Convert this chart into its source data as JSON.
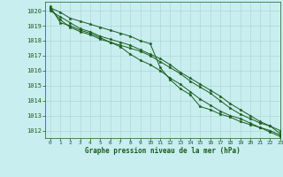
{
  "title": "Graphe pression niveau de la mer (hPa)",
  "bg_color": "#c8eef0",
  "grid_color": "#b0d8d8",
  "line_color": "#1a5c1a",
  "xlim": [
    -0.5,
    23
  ],
  "ylim": [
    1011.5,
    1020.6
  ],
  "xticks": [
    0,
    1,
    2,
    3,
    4,
    5,
    6,
    7,
    8,
    9,
    10,
    11,
    12,
    13,
    14,
    15,
    16,
    17,
    18,
    19,
    20,
    21,
    22,
    23
  ],
  "yticks": [
    1012,
    1013,
    1014,
    1015,
    1016,
    1017,
    1018,
    1019,
    1020
  ],
  "series": [
    [
      1020.2,
      1019.9,
      1019.5,
      1019.3,
      1019.1,
      1018.9,
      1018.7,
      1018.5,
      1018.3,
      1018.0,
      1017.8,
      1016.2,
      1015.4,
      1014.8,
      1014.4,
      1013.6,
      1013.4,
      1013.1,
      1012.9,
      1012.6,
      1012.4,
      1012.2,
      1012.0,
      1011.7
    ],
    [
      1020.1,
      1019.4,
      1018.9,
      1018.6,
      1018.4,
      1018.1,
      1017.9,
      1017.7,
      1017.5,
      1017.3,
      1017.0,
      1016.6,
      1016.2,
      1015.8,
      1015.3,
      1014.9,
      1014.5,
      1014.0,
      1013.5,
      1013.1,
      1012.8,
      1012.5,
      1012.3,
      1011.8
    ],
    [
      1020.0,
      1019.6,
      1019.2,
      1018.8,
      1018.6,
      1018.3,
      1018.1,
      1017.9,
      1017.7,
      1017.4,
      1017.1,
      1016.8,
      1016.4,
      1015.9,
      1015.5,
      1015.1,
      1014.7,
      1014.3,
      1013.8,
      1013.4,
      1013.0,
      1012.6,
      1012.3,
      1012.0
    ],
    [
      1020.3,
      1019.2,
      1019.0,
      1018.7,
      1018.5,
      1018.2,
      1017.9,
      1017.6,
      1017.1,
      1016.7,
      1016.4,
      1016.0,
      1015.5,
      1015.1,
      1014.6,
      1014.1,
      1013.7,
      1013.3,
      1013.0,
      1012.8,
      1012.5,
      1012.2,
      1011.9,
      1011.6
    ]
  ]
}
